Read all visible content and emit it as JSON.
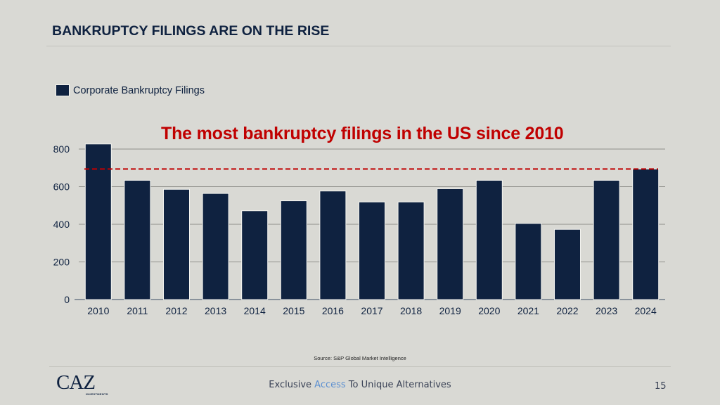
{
  "slide": {
    "title": "BANKRUPTCY FILINGS ARE ON THE RISE",
    "source": "Source: S&P Global Market Intelligence",
    "logo": {
      "main": "CAZ",
      "sub": "INVESTMENTS"
    },
    "tagline": {
      "pre": "Exclusive ",
      "accent": "Access",
      "post": " To Unique Alternatives"
    },
    "page_number": "15",
    "colors": {
      "bar": "#0f2240",
      "annotation": "#c00000",
      "accent": "#5b8fd1",
      "background": "#d9d9d4"
    }
  },
  "chart_data": {
    "type": "bar",
    "title": "",
    "annotation": "The most bankruptcy filings in the US since 2010",
    "legend": {
      "entries": [
        "Corporate Bankruptcy Filings"
      ],
      "placement": "top-left"
    },
    "xlabel": "",
    "ylabel": "",
    "categories": [
      "2010",
      "2011",
      "2012",
      "2013",
      "2014",
      "2015",
      "2016",
      "2017",
      "2018",
      "2019",
      "2020",
      "2021",
      "2022",
      "2023",
      "2024"
    ],
    "series": [
      {
        "name": "Corporate Bankruptcy Filings",
        "values": [
          827,
          634,
          586,
          564,
          472,
          525,
          577,
          519,
          519,
          589,
          634,
          405,
          373,
          634,
          694
        ]
      }
    ],
    "reference_line": {
      "value": 694,
      "style": "dashed",
      "color": "#c00000"
    },
    "yticks": [
      0,
      200,
      400,
      600,
      800
    ],
    "ylim": [
      0,
      800
    ],
    "grid": true
  }
}
